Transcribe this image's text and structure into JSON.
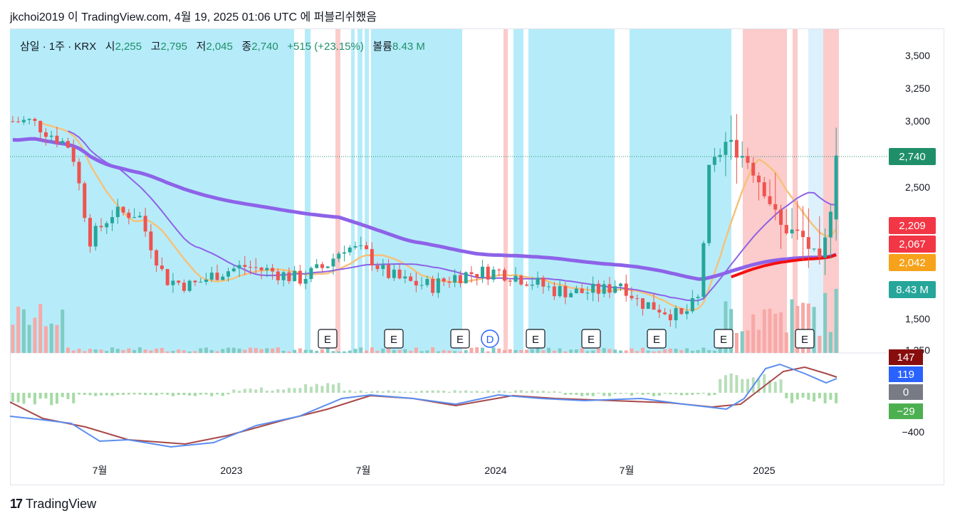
{
  "header": {
    "caption": "jkchoi2019 이 TradingView.com, 4월 19, 2025 01:06 UTC 에 퍼블리쉬했음"
  },
  "legend": {
    "symbol": "삼일 · 1주 · KRX",
    "open_label": "시",
    "open": "2,255",
    "high_label": "고",
    "high": "2,795",
    "low_label": "저",
    "low": "2,045",
    "close_label": "종",
    "close": "2,740",
    "change": "+515 (+23.15%)",
    "volume_label": "볼륨",
    "volume": "8.43 M"
  },
  "footer": {
    "brand": "TradingView",
    "logo": "17"
  },
  "colors": {
    "up": "#26a69a",
    "down": "#ef5350",
    "bg_blue": "#b2ebf9",
    "bg_red": "#fcc8c8",
    "bg_lightblue": "#daf0fb",
    "ma_purple": "#8d63e8",
    "ma_orange": "#f5c27d",
    "ma_red": "#f50f0f",
    "macd": "#5b8def",
    "signal": "#a84848"
  },
  "chart_data": {
    "type": "candlestick",
    "interval": "1주",
    "price_axis": {
      "min": 1250,
      "max": 3500,
      "ticks": [
        "3,500",
        "3,250",
        "3,000",
        "2,500",
        "1,500",
        "1,250"
      ]
    },
    "time_axis": {
      "labels": [
        "7월",
        "2023",
        "7월",
        "2024",
        "7월",
        "2025"
      ]
    },
    "price_labels": [
      {
        "text": "2,740",
        "color": "#1f8f6a"
      },
      {
        "text": "2,209",
        "color": "#f23645"
      },
      {
        "text": "2,067",
        "color": "#f23645"
      },
      {
        "text": "2,042",
        "color": "#f7a21b"
      },
      {
        "text": "8.43 M",
        "color": "#26a69a"
      }
    ],
    "macd_axis": {
      "ticks": [
        "147",
        "119",
        "0",
        "−29",
        "−400"
      ]
    },
    "macd_labels": [
      {
        "text": "147",
        "color": "#880e0e"
      },
      {
        "text": "119",
        "color": "#2962ff"
      },
      {
        "text": "0",
        "color": "#787b86"
      },
      {
        "text": "−29",
        "color": "#4caf50"
      }
    ],
    "events": [
      "E",
      "E",
      "E",
      "E",
      "D",
      "E",
      "E",
      "E",
      "E",
      "E"
    ],
    "ohlc_close_key": [
      [
        2022.3,
        3000
      ],
      [
        2022.45,
        2800
      ],
      [
        2022.52,
        2100
      ],
      [
        2022.6,
        2300
      ],
      [
        2022.7,
        2300
      ],
      [
        2022.8,
        1800
      ],
      [
        2022.9,
        1750
      ],
      [
        2023.0,
        1850
      ],
      [
        2023.1,
        1900
      ],
      [
        2023.2,
        1860
      ],
      [
        2023.3,
        1800
      ],
      [
        2023.4,
        1900
      ],
      [
        2023.47,
        2050
      ],
      [
        2023.55,
        2000
      ],
      [
        2023.62,
        1850
      ],
      [
        2023.7,
        1780
      ],
      [
        2023.8,
        1750
      ],
      [
        2023.88,
        1820
      ],
      [
        2023.95,
        1850
      ],
      [
        2024.05,
        1860
      ],
      [
        2024.15,
        1800
      ],
      [
        2024.25,
        1720
      ],
      [
        2024.35,
        1700
      ],
      [
        2024.45,
        1720
      ],
      [
        2024.5,
        1790
      ],
      [
        2024.57,
        1630
      ],
      [
        2024.65,
        1580
      ],
      [
        2024.73,
        1510
      ],
      [
        2024.8,
        1660
      ],
      [
        2024.83,
        2600
      ],
      [
        2024.9,
        2850
      ],
      [
        2024.98,
        2700
      ],
      [
        2025.05,
        2450
      ],
      [
        2025.1,
        2200
      ],
      [
        2025.18,
        2130
      ],
      [
        2025.25,
        1900
      ],
      [
        2025.28,
        2200
      ],
      [
        2025.31,
        2740
      ]
    ],
    "volume_last": "8.43 M"
  }
}
